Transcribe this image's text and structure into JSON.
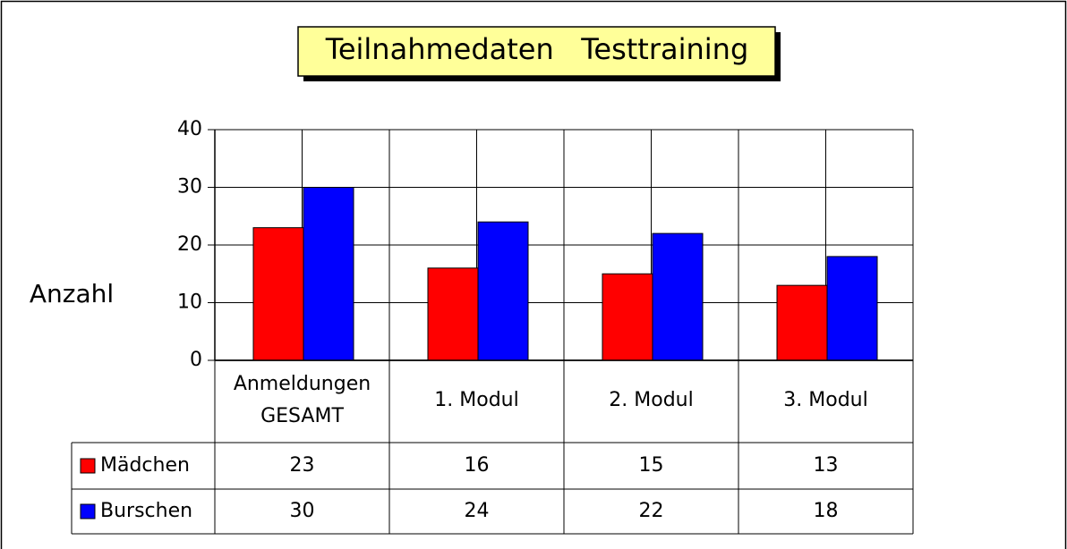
{
  "chart_data": {
    "type": "bar",
    "title": "Teilnahmedaten   Testtraining",
    "y_axis_label": "Anzahl",
    "categories": [
      "Anmeldungen\nGESAMT",
      "1. Modul",
      "2. Modul",
      "3. Modul"
    ],
    "series": [
      {
        "name": "Mädchen",
        "color": "#ff0000",
        "values": [
          23,
          16,
          15,
          13
        ]
      },
      {
        "name": "Burschen",
        "color": "#0000ff",
        "values": [
          30,
          24,
          22,
          18
        ]
      }
    ],
    "ylim": [
      0,
      40
    ],
    "yticks": [
      0,
      10,
      20,
      30,
      40
    ],
    "grid": true
  }
}
